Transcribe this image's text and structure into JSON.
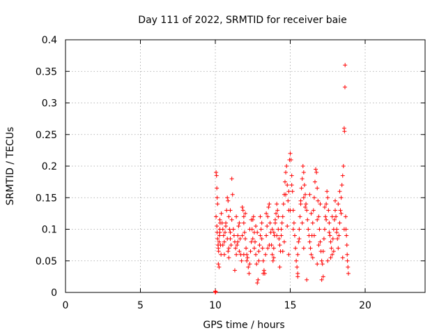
{
  "chart_data": {
    "type": "scatter",
    "title": "Day 111 of 2022, SRMTID for receiver baie",
    "xlabel": "GPS time / hours",
    "ylabel": "SRMTID / TECUs",
    "xlim": [
      0,
      24
    ],
    "ylim": [
      0,
      0.4
    ],
    "grid": true,
    "marker": "+",
    "series_color": "#ff0000",
    "x_ticks": [
      0,
      5,
      10,
      15,
      20
    ],
    "x_tick_labels": [
      "0",
      "5",
      "10",
      "15",
      "20"
    ],
    "y_ticks": [
      0,
      0.05,
      0.1,
      0.15,
      0.2,
      0.25,
      0.3,
      0.35,
      0.4
    ],
    "y_tick_labels": [
      "0",
      "0.05",
      "0.1",
      "0.15",
      "0.2",
      "0.25",
      "0.3",
      "0.35",
      "0.4"
    ],
    "series": [
      {
        "name": "SRMTID",
        "points": [
          [
            10.0,
            0.0
          ],
          [
            10.0,
            0.002
          ],
          [
            10.02,
            0.001
          ],
          [
            10.05,
            0.19
          ],
          [
            10.08,
            0.185
          ],
          [
            10.1,
            0.165
          ],
          [
            10.12,
            0.15
          ],
          [
            10.15,
            0.14
          ],
          [
            10.05,
            0.12
          ],
          [
            10.1,
            0.105
          ],
          [
            10.12,
            0.095
          ],
          [
            10.15,
            0.085
          ],
          [
            10.18,
            0.075
          ],
          [
            10.2,
            0.07
          ],
          [
            10.22,
            0.065
          ],
          [
            10.25,
            0.08
          ],
          [
            10.28,
            0.09
          ],
          [
            10.3,
            0.1
          ],
          [
            10.32,
            0.11
          ],
          [
            10.35,
            0.075
          ],
          [
            10.2,
            0.045
          ],
          [
            10.25,
            0.04
          ],
          [
            10.3,
            0.115
          ],
          [
            10.38,
            0.06
          ],
          [
            10.4,
            0.125
          ],
          [
            10.45,
            0.11
          ],
          [
            10.5,
            0.1
          ],
          [
            10.55,
            0.09
          ],
          [
            10.6,
            0.08
          ],
          [
            10.65,
            0.095
          ],
          [
            10.7,
            0.11
          ],
          [
            10.75,
            0.13
          ],
          [
            10.8,
            0.15
          ],
          [
            10.85,
            0.145
          ],
          [
            10.9,
            0.12
          ],
          [
            10.95,
            0.1
          ],
          [
            11.0,
            0.085
          ],
          [
            11.05,
            0.075
          ],
          [
            11.1,
            0.18
          ],
          [
            11.15,
            0.155
          ],
          [
            10.85,
            0.065
          ],
          [
            10.9,
            0.07
          ],
          [
            11.0,
            0.095
          ],
          [
            11.2,
            0.1
          ],
          [
            11.25,
            0.09
          ],
          [
            11.3,
            0.08
          ],
          [
            11.35,
            0.07
          ],
          [
            11.4,
            0.06
          ],
          [
            11.45,
            0.075
          ],
          [
            11.5,
            0.09
          ],
          [
            11.55,
            0.105
          ],
          [
            11.6,
            0.11
          ],
          [
            11.65,
            0.085
          ],
          [
            11.7,
            0.06
          ],
          [
            11.75,
            0.05
          ],
          [
            11.8,
            0.135
          ],
          [
            11.85,
            0.13
          ],
          [
            11.9,
            0.12
          ],
          [
            11.95,
            0.095
          ],
          [
            12.0,
            0.085
          ],
          [
            12.05,
            0.07
          ],
          [
            12.1,
            0.06
          ],
          [
            12.15,
            0.055
          ],
          [
            12.2,
            0.04
          ],
          [
            12.25,
            0.03
          ],
          [
            12.3,
            0.045
          ],
          [
            12.35,
            0.065
          ],
          [
            12.4,
            0.08
          ],
          [
            12.45,
            0.1
          ],
          [
            12.5,
            0.115
          ],
          [
            12.55,
            0.12
          ],
          [
            12.6,
            0.095
          ],
          [
            12.65,
            0.08
          ],
          [
            12.7,
            0.06
          ],
          [
            12.75,
            0.045
          ],
          [
            12.8,
            0.015
          ],
          [
            12.85,
            0.02
          ],
          [
            12.9,
            0.05
          ],
          [
            12.95,
            0.075
          ],
          [
            13.0,
            0.09
          ],
          [
            13.05,
            0.1
          ],
          [
            13.1,
            0.085
          ],
          [
            13.15,
            0.07
          ],
          [
            13.2,
            0.05
          ],
          [
            13.25,
            0.035
          ],
          [
            13.3,
            0.03
          ],
          [
            13.35,
            0.06
          ],
          [
            13.4,
            0.09
          ],
          [
            13.45,
            0.105
          ],
          [
            13.5,
            0.12
          ],
          [
            13.55,
            0.135
          ],
          [
            13.6,
            0.14
          ],
          [
            13.65,
            0.11
          ],
          [
            13.7,
            0.095
          ],
          [
            13.75,
            0.075
          ],
          [
            13.8,
            0.06
          ],
          [
            13.85,
            0.05
          ],
          [
            13.9,
            0.07
          ],
          [
            13.95,
            0.09
          ],
          [
            14.0,
            0.11
          ],
          [
            14.05,
            0.125
          ],
          [
            14.1,
            0.14
          ],
          [
            14.15,
            0.13
          ],
          [
            14.2,
            0.1
          ],
          [
            14.25,
            0.085
          ],
          [
            14.3,
            0.075
          ],
          [
            14.35,
            0.065
          ],
          [
            14.4,
            0.09
          ],
          [
            14.45,
            0.11
          ],
          [
            14.5,
            0.12
          ],
          [
            14.55,
            0.14
          ],
          [
            14.6,
            0.155
          ],
          [
            14.65,
            0.175
          ],
          [
            14.7,
            0.19
          ],
          [
            14.75,
            0.2
          ],
          [
            14.8,
            0.17
          ],
          [
            14.85,
            0.145
          ],
          [
            14.9,
            0.13
          ],
          [
            14.95,
            0.21
          ],
          [
            15.0,
            0.22
          ],
          [
            15.05,
            0.21
          ],
          [
            15.1,
            0.185
          ],
          [
            15.15,
            0.16
          ],
          [
            15.2,
            0.13
          ],
          [
            15.25,
            0.11
          ],
          [
            15.3,
            0.09
          ],
          [
            15.35,
            0.07
          ],
          [
            15.4,
            0.05
          ],
          [
            15.45,
            0.04
          ],
          [
            15.5,
            0.03
          ],
          [
            15.55,
            0.08
          ],
          [
            15.6,
            0.1
          ],
          [
            15.65,
            0.12
          ],
          [
            15.7,
            0.14
          ],
          [
            15.75,
            0.165
          ],
          [
            15.8,
            0.18
          ],
          [
            15.85,
            0.2
          ],
          [
            15.9,
            0.19
          ],
          [
            15.95,
            0.17
          ],
          [
            16.0,
            0.155
          ],
          [
            16.05,
            0.14
          ],
          [
            16.1,
            0.13
          ],
          [
            16.15,
            0.115
          ],
          [
            16.2,
            0.1
          ],
          [
            16.25,
            0.09
          ],
          [
            16.3,
            0.08
          ],
          [
            16.35,
            0.07
          ],
          [
            16.4,
            0.06
          ],
          [
            16.45,
            0.09
          ],
          [
            16.5,
            0.11
          ],
          [
            16.55,
            0.13
          ],
          [
            16.6,
            0.15
          ],
          [
            16.65,
            0.175
          ],
          [
            16.7,
            0.195
          ],
          [
            16.75,
            0.19
          ],
          [
            16.8,
            0.165
          ],
          [
            16.85,
            0.145
          ],
          [
            16.9,
            0.12
          ],
          [
            16.95,
            0.1
          ],
          [
            17.0,
            0.08
          ],
          [
            17.05,
            0.065
          ],
          [
            17.1,
            0.05
          ],
          [
            17.15,
            0.045
          ],
          [
            17.2,
            0.065
          ],
          [
            17.25,
            0.085
          ],
          [
            17.3,
            0.1
          ],
          [
            17.35,
            0.12
          ],
          [
            17.4,
            0.14
          ],
          [
            17.45,
            0.16
          ],
          [
            17.5,
            0.15
          ],
          [
            17.55,
            0.13
          ],
          [
            17.6,
            0.11
          ],
          [
            17.65,
            0.09
          ],
          [
            17.7,
            0.08
          ],
          [
            17.75,
            0.07
          ],
          [
            17.8,
            0.06
          ],
          [
            17.85,
            0.085
          ],
          [
            17.9,
            0.1
          ],
          [
            17.95,
            0.115
          ],
          [
            18.0,
            0.13
          ],
          [
            18.05,
            0.12
          ],
          [
            18.1,
            0.1
          ],
          [
            18.15,
            0.085
          ],
          [
            18.2,
            0.07
          ],
          [
            18.25,
            0.09
          ],
          [
            18.3,
            0.11
          ],
          [
            18.35,
            0.13
          ],
          [
            18.4,
            0.15
          ],
          [
            18.45,
            0.17
          ],
          [
            18.5,
            0.185
          ],
          [
            18.55,
            0.2
          ],
          [
            18.6,
            0.26
          ],
          [
            18.62,
            0.255
          ],
          [
            18.65,
            0.325
          ],
          [
            18.66,
            0.36
          ],
          [
            18.7,
            0.12
          ],
          [
            18.72,
            0.1
          ],
          [
            18.75,
            0.09
          ],
          [
            18.78,
            0.075
          ],
          [
            18.8,
            0.06
          ],
          [
            18.82,
            0.05
          ],
          [
            18.85,
            0.04
          ],
          [
            18.88,
            0.03
          ],
          [
            16.1,
            0.02
          ],
          [
            17.1,
            0.02
          ],
          [
            17.2,
            0.025
          ],
          [
            13.2,
            0.03
          ],
          [
            14.3,
            0.04
          ],
          [
            11.3,
            0.035
          ],
          [
            12.1,
            0.05
          ],
          [
            15.5,
            0.025
          ],
          [
            16.8,
            0.045
          ],
          [
            17.7,
            0.055
          ],
          [
            10.6,
            0.06
          ],
          [
            11.6,
            0.065
          ],
          [
            12.6,
            0.07
          ],
          [
            13.6,
            0.075
          ],
          [
            14.6,
            0.08
          ],
          [
            15.6,
            0.085
          ],
          [
            16.6,
            0.09
          ],
          [
            17.6,
            0.095
          ],
          [
            18.6,
            0.1
          ],
          [
            10.8,
            0.085
          ],
          [
            11.8,
            0.09
          ],
          [
            12.8,
            0.095
          ],
          [
            13.8,
            0.1
          ],
          [
            14.8,
            0.105
          ],
          [
            15.8,
            0.11
          ],
          [
            16.8,
            0.115
          ],
          [
            17.8,
            0.12
          ],
          [
            18.4,
            0.125
          ],
          [
            11.0,
            0.13
          ],
          [
            12.0,
            0.125
          ],
          [
            13.0,
            0.12
          ],
          [
            14.0,
            0.115
          ],
          [
            15.0,
            0.13
          ],
          [
            16.0,
            0.135
          ],
          [
            17.0,
            0.14
          ],
          [
            18.0,
            0.145
          ],
          [
            10.5,
            0.075
          ],
          [
            11.5,
            0.08
          ],
          [
            12.5,
            0.085
          ],
          [
            13.5,
            0.07
          ],
          [
            14.5,
            0.065
          ],
          [
            15.5,
            0.06
          ],
          [
            16.5,
            0.055
          ],
          [
            17.5,
            0.05
          ],
          [
            18.5,
            0.055
          ],
          [
            14.9,
            0.16
          ],
          [
            15.1,
            0.17
          ],
          [
            15.9,
            0.15
          ],
          [
            16.3,
            0.155
          ],
          [
            17.3,
            0.135
          ],
          [
            18.2,
            0.14
          ],
          [
            18.3,
            0.16
          ],
          [
            14.7,
            0.155
          ],
          [
            15.7,
            0.145
          ],
          [
            10.3,
            0.095
          ],
          [
            10.7,
            0.105
          ],
          [
            11.1,
            0.115
          ],
          [
            11.9,
            0.11
          ],
          [
            12.3,
            0.1
          ],
          [
            12.7,
            0.105
          ],
          [
            13.1,
            0.11
          ],
          [
            13.9,
            0.095
          ],
          [
            14.1,
            0.09
          ],
          [
            14.4,
            0.1
          ],
          [
            11.4,
            0.12
          ],
          [
            12.4,
            0.115
          ],
          [
            13.4,
            0.125
          ],
          [
            14.2,
            0.12
          ],
          [
            15.2,
            0.1
          ],
          [
            16.4,
            0.125
          ],
          [
            17.4,
            0.115
          ],
          [
            18.1,
            0.095
          ],
          [
            10.9,
            0.055
          ],
          [
            11.9,
            0.06
          ],
          [
            12.9,
            0.065
          ],
          [
            13.9,
            0.055
          ],
          [
            14.9,
            0.06
          ],
          [
            15.9,
            0.07
          ],
          [
            16.9,
            0.075
          ],
          [
            17.9,
            0.065
          ]
        ]
      }
    ]
  }
}
